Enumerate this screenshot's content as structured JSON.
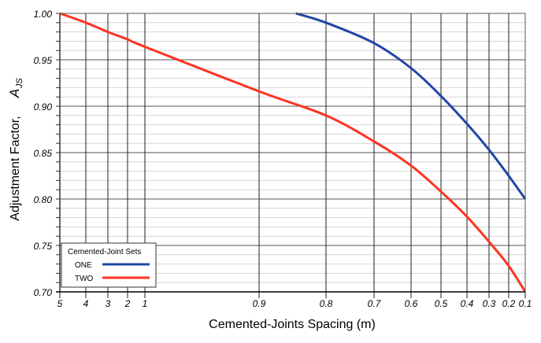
{
  "chart_data": {
    "type": "line",
    "title": "",
    "xlabel": "Cemented-Joints Spacing  (m)",
    "ylabel": "Adjustment Factor,",
    "ylabel_symbol": "A",
    "ylabel_subscript": "JS",
    "x_ticks": [
      "5",
      "4",
      "3",
      "2",
      "1",
      "0.9",
      "0.8",
      "0.7",
      "0.6",
      "0.5",
      "0.4",
      "0.3",
      "0.2",
      "0.1"
    ],
    "x_tick_values": [
      5,
      4,
      3,
      2,
      1,
      0.9,
      0.8,
      0.7,
      0.6,
      0.5,
      0.4,
      0.3,
      0.2,
      0.1
    ],
    "y_ticks": [
      "1.00",
      "0.95",
      "0.90",
      "0.85",
      "0.80",
      "0.75",
      "0.70"
    ],
    "ylim": [
      0.7,
      1.0
    ],
    "grid": true,
    "legend": {
      "title": "Cemented-Joint  Sets",
      "placement": "bottom-left"
    },
    "series": [
      {
        "name": "ONE",
        "color": "#2146a8",
        "x": [
          0.845,
          0.8,
          0.7,
          0.6,
          0.5,
          0.4,
          0.3,
          0.2,
          0.1
        ],
        "y": [
          1.0,
          0.99,
          0.968,
          0.941,
          0.911,
          0.881,
          0.853,
          0.825,
          0.8
        ]
      },
      {
        "name": "TWO",
        "color": "#ff3322",
        "x": [
          5,
          4,
          3,
          2,
          1,
          0.9,
          0.8,
          0.7,
          0.6,
          0.5,
          0.4,
          0.3,
          0.2,
          0.1
        ],
        "y": [
          1.0,
          0.99,
          0.98,
          0.972,
          0.964,
          0.916,
          0.89,
          0.862,
          0.836,
          0.808,
          0.781,
          0.754,
          0.728,
          0.7
        ]
      }
    ]
  }
}
